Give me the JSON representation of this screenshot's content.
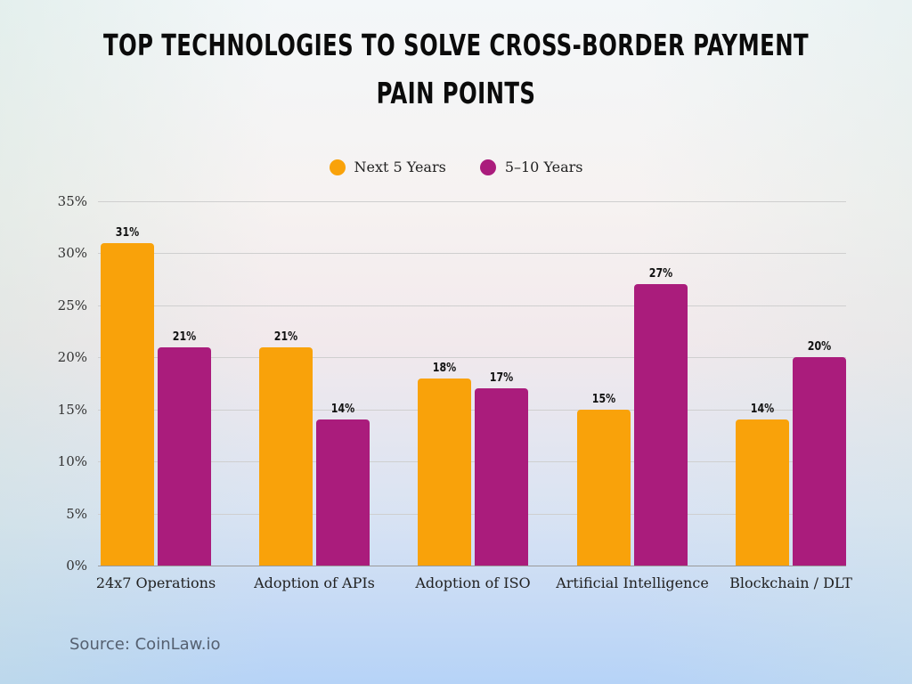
{
  "title": "Top Technologies to Solve Cross-Border Payment Pain Points",
  "title_lines": [
    "Top Technologies to Solve Cross-Border Payment",
    "Pain Points"
  ],
  "legend": [
    {
      "label": "Next 5 Years",
      "color": "#F9A20A"
    },
    {
      "label": "5–10 Years",
      "color": "#AA1C7C"
    }
  ],
  "y_ticks": [
    "0%",
    "5%",
    "10%",
    "15%",
    "20%",
    "25%",
    "30%",
    "35%"
  ],
  "source": "Source: CoinLaw.io",
  "chart_data": {
    "type": "bar",
    "title": "Top Technologies to Solve Cross-Border Payment Pain Points",
    "xlabel": "",
    "ylabel": "",
    "categories": [
      "24x7 Operations",
      "Adoption of APIs",
      "Adoption of ISO",
      "Artificial Intelligence",
      "Blockchain / DLT"
    ],
    "series": [
      {
        "name": "Next 5 Years",
        "color": "#F9A20A",
        "values": [
          31,
          21,
          18,
          15,
          14
        ],
        "labels": [
          "31%",
          "21%",
          "18%",
          "15%",
          "14%"
        ]
      },
      {
        "name": "5–10 Years",
        "color": "#AA1C7C",
        "values": [
          21,
          14,
          17,
          27,
          20
        ],
        "labels": [
          "21%",
          "14%",
          "17%",
          "27%",
          "20%"
        ]
      }
    ],
    "ylim": [
      0,
      35
    ],
    "y_tick_step": 5,
    "y_format": "percent",
    "grid": true,
    "legend_position": "top",
    "data_labels": true,
    "source": "CoinLaw.io"
  }
}
